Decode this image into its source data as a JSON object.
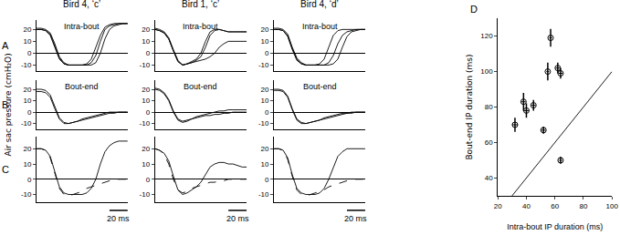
{
  "chart_data": [
    {
      "type": "line",
      "label": "A",
      "title": "Bird 4, ‘c’",
      "annotation": "Intra-bout",
      "x": [
        0,
        5,
        10,
        15,
        20,
        25,
        30,
        35,
        40,
        45,
        50,
        55,
        60,
        65,
        70,
        75,
        80,
        85,
        90,
        95,
        100
      ],
      "xlim": [
        0,
        100
      ],
      "xticks": [],
      "ylim": [
        -15,
        28
      ],
      "yticks": [
        -10,
        0,
        10,
        20
      ],
      "tick_labels": "y",
      "series": [
        {
          "color": "#000000",
          "line_style": "solid",
          "values": [
            20,
            20,
            19,
            15,
            5,
            -5,
            -9,
            -10,
            -10,
            -10,
            -10,
            -9,
            -5,
            5,
            15,
            22,
            24,
            25,
            25,
            25,
            25
          ]
        },
        {
          "color": "#000000",
          "line_style": "solid",
          "values": [
            21,
            21,
            20,
            17,
            8,
            -3,
            -8,
            -10,
            -10,
            -10,
            -10,
            -10,
            -10,
            -8,
            0,
            12,
            20,
            23,
            24,
            25,
            25
          ]
        },
        {
          "color": "#000000",
          "line_style": "solid",
          "values": [
            20,
            20,
            19,
            16,
            6,
            -4,
            -9,
            -10,
            -10,
            -10,
            -10,
            -10,
            -8,
            -2,
            10,
            20,
            23,
            24,
            25,
            25,
            25
          ]
        }
      ]
    },
    {
      "type": "line",
      "title": "Bird 1, ‘c’",
      "annotation": "Intra-bout",
      "x": [
        0,
        5,
        10,
        15,
        20,
        25,
        30,
        35,
        40,
        45,
        50,
        55,
        60,
        65,
        70,
        75,
        80,
        85,
        90,
        95,
        100
      ],
      "xlim": [
        0,
        100
      ],
      "xticks": [],
      "ylim": [
        -15,
        28
      ],
      "yticks": [
        -10,
        0,
        10,
        20
      ],
      "tick_labels": "y",
      "series": [
        {
          "color": "#000000",
          "line_style": "solid",
          "values": [
            20,
            19,
            17,
            12,
            2,
            -7,
            -10,
            -9,
            -7,
            -5,
            0,
            10,
            18,
            20,
            20,
            19,
            18,
            18,
            18,
            18,
            18
          ]
        },
        {
          "color": "#000000",
          "line_style": "solid",
          "values": [
            21,
            20,
            18,
            13,
            3,
            -6,
            -10,
            -9,
            -8,
            -6,
            -3,
            5,
            15,
            19,
            20,
            19,
            18,
            18,
            18,
            18,
            18
          ]
        },
        {
          "color": "#000000",
          "line_style": "solid",
          "values": [
            20,
            19,
            17,
            12,
            2,
            -7,
            -10,
            -9,
            -8,
            -7,
            -6,
            -5,
            -3,
            0,
            5,
            8,
            10,
            10,
            10,
            10,
            10
          ]
        }
      ]
    },
    {
      "type": "line",
      "title": "Bird 4, ‘d’",
      "annotation": "Intra-bout",
      "x": [
        0,
        5,
        10,
        15,
        20,
        25,
        30,
        35,
        40,
        45,
        50,
        55,
        60,
        65,
        70,
        75,
        80,
        85,
        90,
        95,
        100
      ],
      "xlim": [
        0,
        100
      ],
      "xticks": [],
      "ylim": [
        -15,
        28
      ],
      "yticks": [
        -10,
        0,
        10,
        20
      ],
      "tick_labels": "y",
      "series": [
        {
          "color": "#000000",
          "line_style": "solid",
          "values": [
            20,
            20,
            19,
            14,
            3,
            -6,
            -9,
            -10,
            -10,
            -10,
            -9,
            -5,
            5,
            15,
            19,
            20,
            20,
            20,
            20,
            20,
            20
          ]
        },
        {
          "color": "#000000",
          "line_style": "solid",
          "values": [
            20,
            20,
            19,
            15,
            4,
            -5,
            -9,
            -10,
            -10,
            -10,
            -10,
            -10,
            -8,
            -2,
            8,
            15,
            18,
            19,
            20,
            20,
            20
          ]
        },
        {
          "color": "#000000",
          "line_style": "solid",
          "values": [
            21,
            21,
            20,
            16,
            5,
            -4,
            -8,
            -10,
            -10,
            -10,
            -10,
            -10,
            -10,
            -9,
            -5,
            5,
            14,
            18,
            19,
            20,
            20
          ]
        }
      ]
    },
    {
      "type": "line",
      "label": "B",
      "annotation": "Bout-end",
      "ylabel": "Air sac pressure (cmH₂O)",
      "x": [
        0,
        5,
        10,
        15,
        20,
        25,
        30,
        35,
        40,
        45,
        50,
        55,
        60,
        65,
        70,
        75,
        80,
        85,
        90,
        95,
        100
      ],
      "xlim": [
        0,
        100
      ],
      "xticks": [],
      "ylim": [
        -15,
        28
      ],
      "yticks": [
        -10,
        0,
        10,
        20
      ],
      "tick_labels": "y",
      "series": [
        {
          "color": "#000000",
          "line_style": "solid",
          "values": [
            20,
            20,
            19,
            15,
            5,
            -5,
            -9,
            -10,
            -9,
            -8,
            -7,
            -6,
            -5,
            -4,
            -3,
            -2,
            -1,
            -1,
            0,
            0,
            0
          ]
        },
        {
          "color": "#000000",
          "line_style": "solid",
          "values": [
            18,
            18,
            17,
            13,
            3,
            -6,
            -10,
            -10,
            -9,
            -8,
            -6,
            -5,
            -4,
            -3,
            -2,
            -1,
            0,
            0,
            0,
            0,
            0
          ]
        }
      ]
    },
    {
      "type": "line",
      "annotation": "Bout-end",
      "x": [
        0,
        5,
        10,
        15,
        20,
        25,
        30,
        35,
        40,
        45,
        50,
        55,
        60,
        65,
        70,
        75,
        80,
        85,
        90,
        95,
        100
      ],
      "xlim": [
        0,
        100
      ],
      "xticks": [],
      "ylim": [
        -15,
        28
      ],
      "yticks": [
        -10,
        0,
        10,
        20
      ],
      "tick_labels": "y",
      "series": [
        {
          "color": "#000000",
          "line_style": "solid",
          "values": [
            20,
            19,
            16,
            10,
            0,
            -7,
            -9,
            -8,
            -6,
            -5,
            -4,
            -3,
            -3,
            -2,
            -2,
            -1,
            -1,
            0,
            0,
            0,
            0
          ]
        },
        {
          "color": "#000000",
          "line_style": "solid",
          "values": [
            21,
            20,
            17,
            11,
            1,
            -6,
            -8,
            -7,
            -6,
            -4,
            -3,
            -2,
            -1,
            0,
            1,
            1,
            2,
            2,
            2,
            2,
            2
          ]
        }
      ]
    },
    {
      "type": "line",
      "annotation": "Bout-end",
      "x": [
        0,
        5,
        10,
        15,
        20,
        25,
        30,
        35,
        40,
        45,
        50,
        55,
        60,
        65,
        70,
        75,
        80,
        85,
        90,
        95,
        100
      ],
      "xlim": [
        0,
        100
      ],
      "xticks": [],
      "ylim": [
        -15,
        28
      ],
      "yticks": [
        -10,
        0,
        10,
        20
      ],
      "tick_labels": "y",
      "series": [
        {
          "color": "#000000",
          "line_style": "solid",
          "values": [
            20,
            20,
            19,
            14,
            3,
            -6,
            -9,
            -10,
            -9,
            -8,
            -7,
            -6,
            -5,
            -4,
            -3,
            -2,
            -1,
            -1,
            0,
            0,
            0
          ]
        },
        {
          "color": "#000000",
          "line_style": "solid",
          "values": [
            19,
            19,
            18,
            13,
            2,
            -7,
            -10,
            -10,
            -9,
            -8,
            -7,
            -5,
            -4,
            -3,
            -2,
            -1,
            -1,
            0,
            0,
            0,
            0
          ]
        }
      ]
    },
    {
      "type": "line",
      "label": "C",
      "scale_bar": {
        "length": 20,
        "label": "20 ms"
      },
      "x": [
        0,
        5,
        10,
        15,
        20,
        25,
        30,
        35,
        40,
        45,
        50,
        55,
        60,
        65,
        70,
        75,
        80,
        85,
        90,
        95,
        100
      ],
      "xlim": [
        0,
        100
      ],
      "xticks": [],
      "ylim": [
        -15,
        28
      ],
      "yticks": [
        -10,
        0,
        10,
        20
      ],
      "tick_labels": "y",
      "series": [
        {
          "color": "#000000",
          "line_style": "solid",
          "values": [
            20,
            20,
            19,
            15,
            5,
            -5,
            -9,
            -10,
            -10,
            -10,
            -10,
            -9,
            -6,
            0,
            10,
            18,
            22,
            24,
            25,
            25,
            25
          ]
        },
        {
          "color": "#000000",
          "line_style": "dashed",
          "values": [
            20,
            20,
            19,
            14,
            4,
            -6,
            -10,
            -11,
            -10,
            -9,
            -8,
            -6,
            -5,
            -4,
            -3,
            -2,
            -1,
            0,
            0,
            0,
            0
          ]
        }
      ]
    },
    {
      "type": "line",
      "scale_bar": {
        "length": 20,
        "label": "20 ms"
      },
      "x": [
        0,
        5,
        10,
        15,
        20,
        25,
        30,
        35,
        40,
        45,
        50,
        55,
        60,
        65,
        70,
        75,
        80,
        85,
        90,
        95,
        100
      ],
      "xlim": [
        0,
        100
      ],
      "xticks": [],
      "ylim": [
        -15,
        28
      ],
      "yticks": [
        -10,
        0,
        10,
        20
      ],
      "tick_labels": "y",
      "series": [
        {
          "color": "#000000",
          "line_style": "solid",
          "values": [
            20,
            19,
            17,
            12,
            2,
            -7,
            -10,
            -9,
            -7,
            -5,
            -2,
            3,
            8,
            10,
            11,
            11,
            10,
            10,
            9,
            8,
            8
          ]
        },
        {
          "color": "#000000",
          "line_style": "dashed",
          "values": [
            20,
            19,
            16,
            10,
            0,
            -7,
            -9,
            -8,
            -6,
            -5,
            -4,
            -3,
            -2,
            -2,
            -1,
            -1,
            0,
            0,
            0,
            0,
            0
          ]
        }
      ]
    },
    {
      "type": "line",
      "scale_bar": {
        "length": 20,
        "label": "20 ms"
      },
      "x": [
        0,
        5,
        10,
        15,
        20,
        25,
        30,
        35,
        40,
        45,
        50,
        55,
        60,
        65,
        70,
        75,
        80,
        85,
        90,
        95,
        100
      ],
      "xlim": [
        0,
        100
      ],
      "xticks": [],
      "ylim": [
        -15,
        28
      ],
      "yticks": [
        -10,
        0,
        10,
        20
      ],
      "tick_labels": "y",
      "series": [
        {
          "color": "#000000",
          "line_style": "solid",
          "values": [
            20,
            20,
            19,
            14,
            3,
            -6,
            -9,
            -10,
            -10,
            -10,
            -9,
            -6,
            0,
            8,
            15,
            18,
            20,
            20,
            20,
            20,
            20
          ]
        },
        {
          "color": "#000000",
          "line_style": "dashed",
          "values": [
            20,
            20,
            19,
            13,
            2,
            -7,
            -10,
            -11,
            -10,
            -9,
            -8,
            -7,
            -5,
            -4,
            -3,
            -2,
            -1,
            0,
            0,
            0,
            0
          ]
        }
      ]
    },
    {
      "type": "scatter",
      "label": "D",
      "xlabel": "Intra-bout IP duration (ms)",
      "ylabel": "Bout-end IP duration (ms)",
      "xlim": [
        20,
        100
      ],
      "xticks": [
        20,
        40,
        60,
        80,
        100
      ],
      "ylim": [
        30,
        130
      ],
      "yticks": [
        40,
        60,
        80,
        100,
        120
      ],
      "tick_labels": true,
      "series": [
        {
          "type": "scatter",
          "color": "#000000",
          "marker": "circle-open",
          "x": [
            32,
            38,
            40,
            45,
            52,
            55,
            57,
            62,
            64,
            64
          ],
          "values": [
            70,
            83,
            78,
            81,
            67,
            100,
            119,
            102,
            99,
            50
          ],
          "x_error": [
            2,
            1.5,
            2,
            1.5,
            1.5,
            1,
            1,
            1.5,
            1.5,
            1
          ],
          "y_error": [
            4,
            5,
            4,
            3,
            2,
            5,
            5,
            3,
            3,
            2
          ]
        },
        {
          "type": "line",
          "color": "#000000",
          "line_style": "solid",
          "x": [
            30,
            100
          ],
          "values": [
            30,
            100
          ]
        }
      ]
    }
  ]
}
